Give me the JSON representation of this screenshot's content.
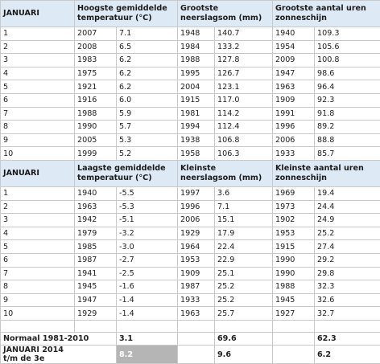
{
  "sections": [
    {
      "header": [
        "JANUARI",
        "Hoogste gemiddelde temperatuur (°C)",
        "Grootste neerslagsom (mm)",
        "Grootste aantal uren zonneschijn"
      ],
      "rows": [
        [
          "1",
          "2007",
          "7.1",
          "1948",
          "140.7",
          "1940",
          "109.3"
        ],
        [
          "2",
          "2008",
          "6.5",
          "1984",
          "133.2",
          "1954",
          "105.6"
        ],
        [
          "3",
          "1983",
          "6.2",
          "1988",
          "127.8",
          "2009",
          "100.8"
        ],
        [
          "4",
          "1975",
          "6.2",
          "1995",
          "126.7",
          "1947",
          "98.6"
        ],
        [
          "5",
          "1921",
          "6.2",
          "2004",
          "123.1",
          "1963",
          "96.4"
        ],
        [
          "6",
          "1916",
          "6.0",
          "1915",
          "117.0",
          "1909",
          "92.3"
        ],
        [
          "7",
          "1988",
          "5.9",
          "1981",
          "114.2",
          "1991",
          "91.8"
        ],
        [
          "8",
          "1990",
          "5.7",
          "1994",
          "112.4",
          "1996",
          "89.2"
        ],
        [
          "9",
          "2005",
          "5.3",
          "1938",
          "106.8",
          "2006",
          "88.8"
        ],
        [
          "10",
          "1999",
          "5.2",
          "1958",
          "106.3",
          "1933",
          "85.7"
        ]
      ]
    },
    {
      "header": [
        "JANUARI",
        "Laagste gemiddelde temperatuur (°C)",
        "Kleinste neerslagsom (mm)",
        "Kleinste aantal uren zonneschijn"
      ],
      "rows": [
        [
          "1",
          "1940",
          "-5.5",
          "1997",
          "3.6",
          "1969",
          "19.4"
        ],
        [
          "2",
          "1963",
          "-5.3",
          "1996",
          "7.1",
          "1973",
          "24.4"
        ],
        [
          "3",
          "1942",
          "-5.1",
          "2006",
          "15.1",
          "1902",
          "24.9"
        ],
        [
          "4",
          "1979",
          "-3.2",
          "1929",
          "17.9",
          "1953",
          "25.2"
        ],
        [
          "5",
          "1985",
          "-3.0",
          "1964",
          "22.4",
          "1915",
          "27.4"
        ],
        [
          "6",
          "1987",
          "-2.7",
          "1953",
          "22.9",
          "1990",
          "29.2"
        ],
        [
          "7",
          "1941",
          "-2.5",
          "1909",
          "25.1",
          "1990",
          "29.8"
        ],
        [
          "8",
          "1945",
          "-1.6",
          "1987",
          "25.2",
          "1988",
          "32.3"
        ],
        [
          "9",
          "1947",
          "-1.4",
          "1933",
          "25.2",
          "1945",
          "32.6"
        ],
        [
          "10",
          "1929",
          "-1.4",
          "1963",
          "25.7",
          "1927",
          "32.7"
        ]
      ]
    }
  ],
  "footer": [
    {
      "label": [
        "Normaal 1981-2010"
      ],
      "values": [
        "3.1",
        "69.6",
        "62.3"
      ]
    },
    {
      "label": [
        "JANUARI 2014",
        "t/m de 3e"
      ],
      "values": [
        "8.2",
        "9.6",
        "6.2"
      ]
    }
  ]
}
